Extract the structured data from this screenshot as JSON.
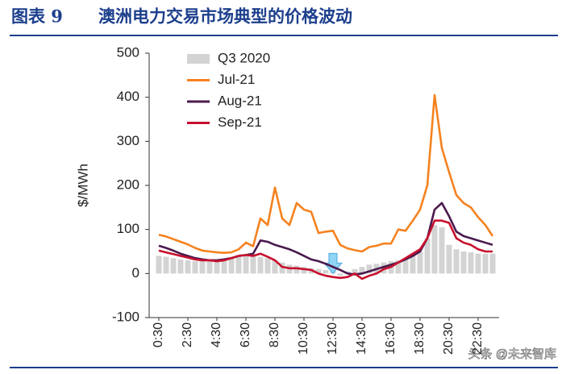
{
  "chart_data": {
    "type": "bar_line",
    "figure_label": "图表 9",
    "title": "澳洲电力交易市场典型的价格波动",
    "y_label": "$/MWh",
    "watermark": "头条 @未来智库",
    "legend": "top-left",
    "grid": false,
    "categories": [
      "0:30",
      null,
      null,
      null,
      "2:30",
      null,
      null,
      null,
      "4:30",
      null,
      null,
      null,
      "6:30",
      null,
      null,
      null,
      "8:30",
      null,
      null,
      null,
      "10:30",
      null,
      null,
      null,
      "12:30",
      null,
      null,
      null,
      "14:30",
      null,
      null,
      null,
      "16:30",
      null,
      null,
      null,
      "18:30",
      null,
      null,
      null,
      "20:30",
      null,
      null,
      null,
      "22:30",
      null,
      null
    ],
    "ylim": [
      -100,
      500
    ],
    "yticks": [
      -100,
      0,
      100,
      200,
      300,
      400,
      500
    ],
    "series": [
      {
        "name": "Q3 2020",
        "type": "bar",
        "color": "#d3d3d3",
        "values": [
          40,
          38,
          35,
          32,
          30,
          28,
          28,
          30,
          30,
          32,
          35,
          40,
          42,
          40,
          38,
          35,
          30,
          25,
          20,
          18,
          15,
          12,
          10,
          8,
          5,
          -5,
          5,
          10,
          15,
          20,
          22,
          25,
          28,
          30,
          35,
          40,
          50,
          80,
          110,
          105,
          65,
          55,
          50,
          48,
          45,
          45,
          45
        ]
      },
      {
        "name": "Jul-21",
        "type": "line",
        "color": "#f5821f",
        "values": [
          88,
          84,
          78,
          72,
          66,
          58,
          52,
          50,
          48,
          47,
          48,
          55,
          70,
          62,
          125,
          110,
          195,
          125,
          110,
          160,
          145,
          140,
          92,
          95,
          97,
          65,
          57,
          53,
          50,
          60,
          63,
          68,
          68,
          100,
          97,
          120,
          145,
          200,
          405,
          285,
          230,
          178,
          160,
          150,
          128,
          110,
          85
        ]
      },
      {
        "name": "Aug-21",
        "type": "line",
        "color": "#4a1a4e",
        "values": [
          63,
          58,
          52,
          45,
          40,
          35,
          32,
          30,
          30,
          32,
          35,
          40,
          42,
          45,
          75,
          72,
          65,
          60,
          55,
          48,
          40,
          32,
          28,
          22,
          15,
          8,
          0,
          -2,
          0,
          5,
          10,
          15,
          20,
          25,
          32,
          40,
          50,
          80,
          145,
          160,
          130,
          95,
          85,
          80,
          75,
          70,
          65
        ]
      },
      {
        "name": "Sep-21",
        "type": "line",
        "color": "#c8102e",
        "values": [
          52,
          48,
          44,
          40,
          36,
          32,
          30,
          30,
          28,
          30,
          35,
          40,
          42,
          40,
          45,
          38,
          30,
          15,
          12,
          12,
          10,
          8,
          0,
          -5,
          -8,
          -10,
          -8,
          0,
          -12,
          -5,
          0,
          10,
          15,
          25,
          35,
          45,
          55,
          80,
          120,
          120,
          115,
          80,
          70,
          65,
          55,
          50,
          50
        ]
      }
    ]
  }
}
